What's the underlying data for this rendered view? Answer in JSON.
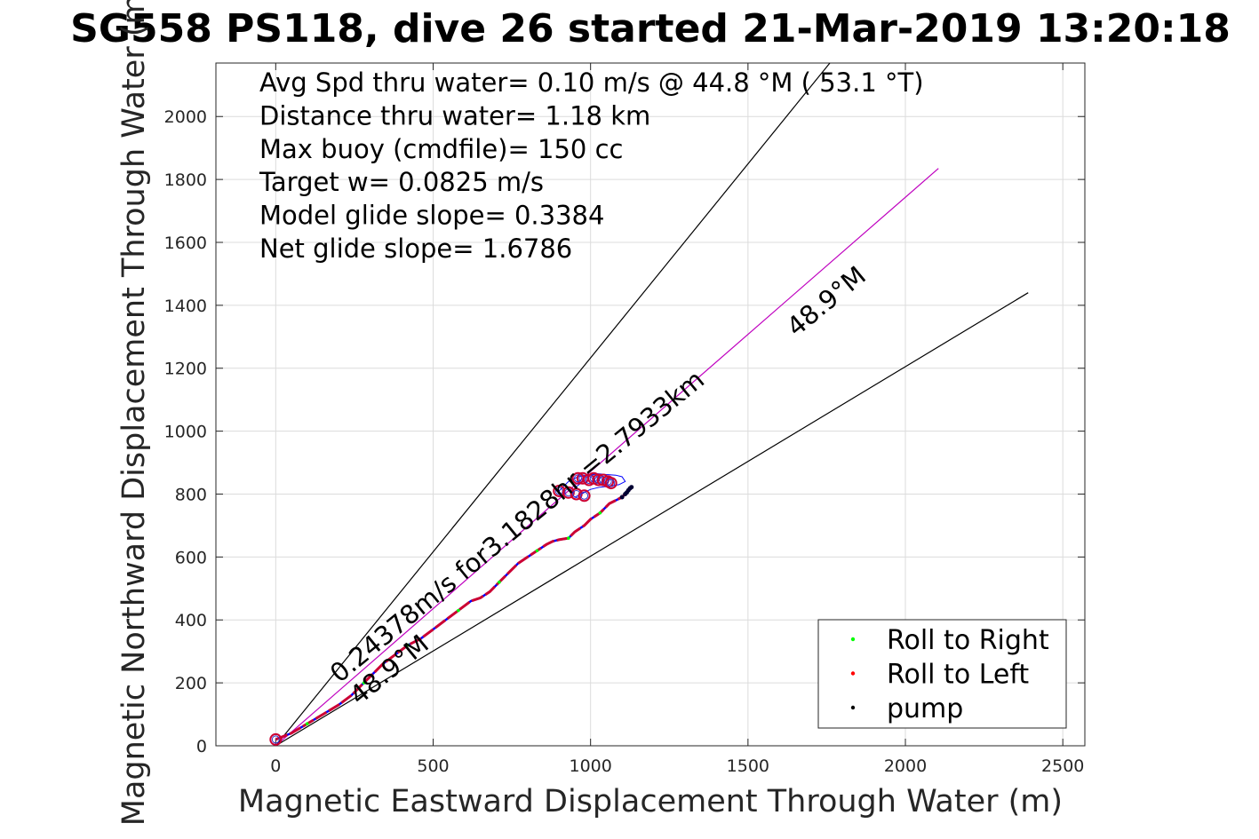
{
  "chart_data": {
    "type": "scatter",
    "title": "SG558 PS118, dive 26 started 21-Mar-2019 13:20:18",
    "xlabel": "Magnetic Eastward Displacement Through Water (m)",
    "ylabel": "Magnetic Northward Displacement Through Water (m)",
    "xlim": [
      -190,
      2570
    ],
    "ylim": [
      0,
      2170
    ],
    "xticks": [
      0,
      500,
      1000,
      1500,
      2000,
      2500
    ],
    "yticks": [
      0,
      200,
      400,
      600,
      800,
      1000,
      1200,
      1400,
      1600,
      1800,
      2000
    ],
    "grid": true,
    "stats": [
      "Avg Spd thru water=  0.10 m/s @  44.8 °M ( 53.1 °T)",
      "Distance thru water=  1.18 km",
      "Max buoy (cmdfile)= 150 cc",
      "Target w= 0.0825 m/s",
      "Model glide slope= 0.3384",
      "Net glide slope= 1.6786"
    ],
    "annotations": {
      "track_speed": "0.24378m/s for3.1828hr =2.7933km",
      "heading_upper": "48.9°M",
      "heading_lower": "48.9°M"
    },
    "reference_lines": [
      {
        "name": "cone-upper",
        "x": [
          0,
          1760
        ],
        "y": [
          0,
          2170
        ],
        "color": "#000000"
      },
      {
        "name": "heading",
        "x": [
          0,
          2105
        ],
        "y": [
          0,
          1835
        ],
        "color": "#bf00bf"
      },
      {
        "name": "cone-lower",
        "x": [
          0,
          2390
        ],
        "y": [
          0,
          1440
        ],
        "color": "#000000"
      }
    ],
    "track": {
      "x": [
        0,
        50,
        100,
        150,
        200,
        240,
        280,
        310,
        340,
        380,
        420,
        460,
        500,
        540,
        580,
        620,
        650,
        680,
        710,
        740,
        770,
        800,
        830,
        860,
        880,
        900,
        930,
        950,
        980,
        1000,
        1030,
        1060,
        1080,
        1100,
        1120,
        1130
      ],
      "y": [
        20,
        40,
        70,
        100,
        130,
        160,
        200,
        230,
        260,
        290,
        320,
        340,
        370,
        400,
        430,
        460,
        470,
        490,
        520,
        550,
        580,
        600,
        620,
        640,
        650,
        655,
        660,
        680,
        700,
        720,
        740,
        770,
        780,
        790,
        810,
        820
      ]
    },
    "dive_end_circles": {
      "x": [
        0,
        900,
        930,
        955,
        975,
        995,
        1010,
        1025,
        1040,
        1055,
        1065,
        980,
        960
      ],
      "y": [
        20,
        810,
        805,
        800,
        850,
        845,
        850,
        845,
        845,
        840,
        835,
        795,
        850
      ]
    },
    "loop": {
      "x": [
        900,
        930,
        960,
        990,
        1020,
        1050,
        1080,
        1100,
        1110,
        1090,
        1060,
        1030,
        1000,
        970,
        950,
        940,
        950,
        970
      ],
      "y": [
        810,
        840,
        855,
        860,
        865,
        862,
        860,
        855,
        840,
        830,
        825,
        822,
        815,
        800,
        790,
        800,
        820,
        835
      ]
    },
    "series": [
      {
        "name": "Roll to Right",
        "color": "#00ff00",
        "marker": "dot"
      },
      {
        "name": "Roll to Left",
        "color": "#ff0000",
        "marker": "dot"
      },
      {
        "name": "pump",
        "color": "#000000",
        "marker": "dot"
      }
    ],
    "pump_points": {
      "x": [
        1100,
        1110,
        1115,
        1120,
        1125,
        1130
      ],
      "y": [
        790,
        800,
        805,
        812,
        818,
        822
      ]
    },
    "legend_position": "bottom-right"
  }
}
